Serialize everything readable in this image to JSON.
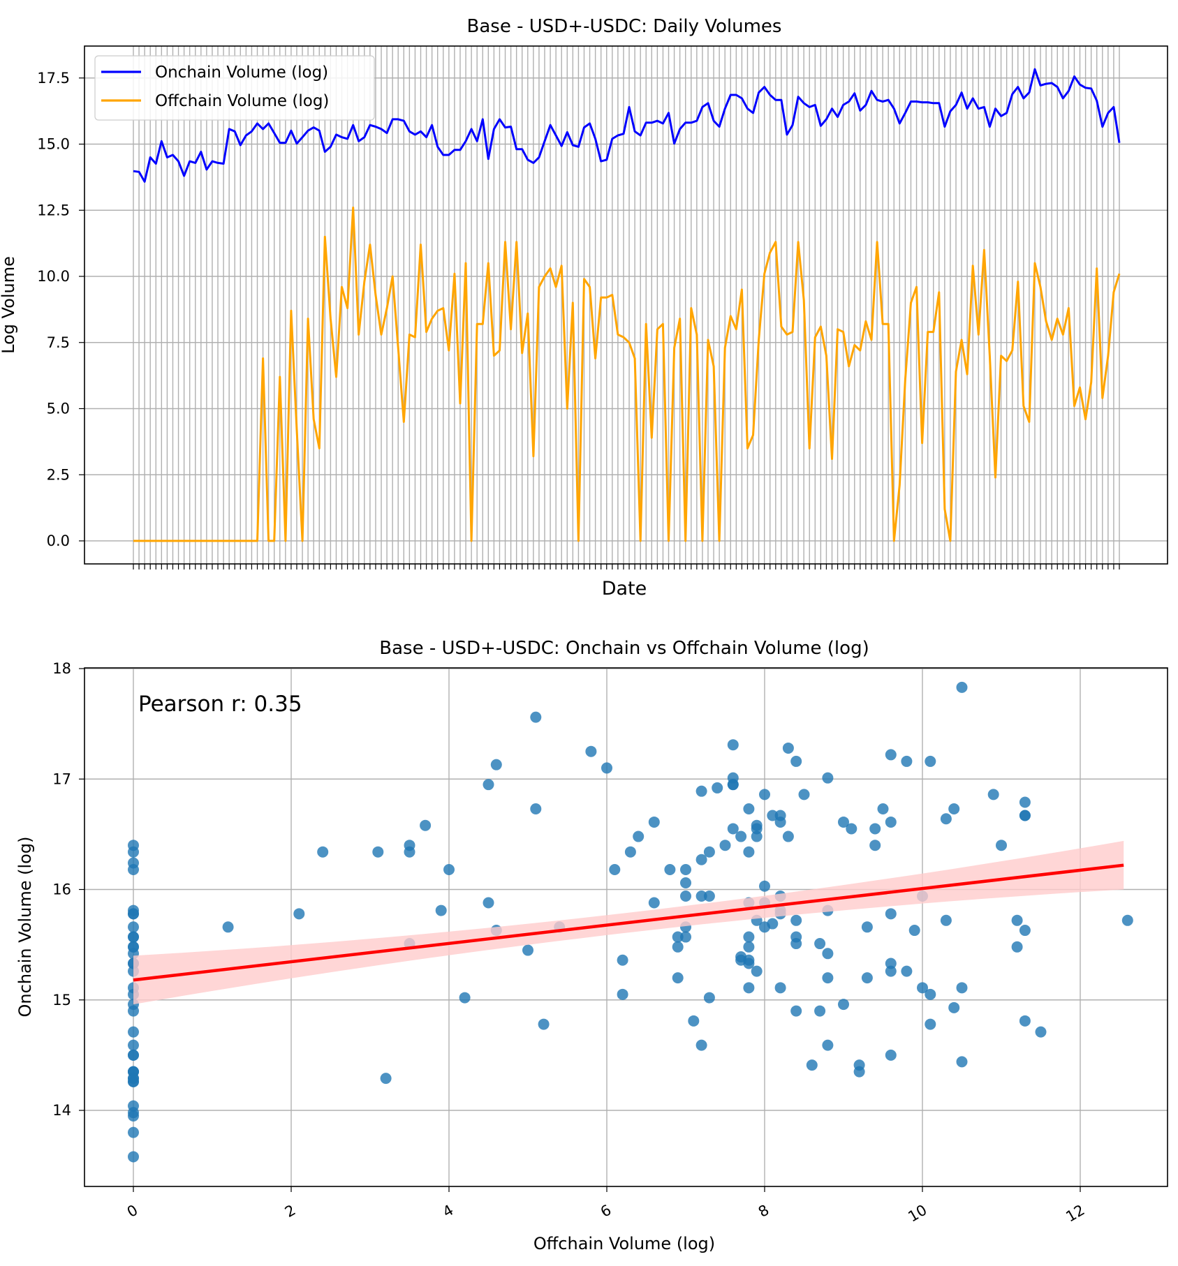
{
  "chart_data": [
    {
      "type": "line",
      "title": "Base - USD+-USDC: Daily Volumes",
      "xlabel": "Date",
      "ylabel": "Log Volume",
      "ylim": [
        -0.87,
        18.7
      ],
      "yticks": [
        "0.0",
        "2.5",
        "5.0",
        "7.5",
        "10.0",
        "12.5",
        "15.0",
        "17.5"
      ],
      "grid": true,
      "legend_position": "top-left",
      "series": [
        {
          "name": "Onchain Volume (log)",
          "color": "#0000ff",
          "values": [
            13.98,
            13.95,
            13.58,
            14.5,
            14.26,
            15.11,
            14.5,
            14.59,
            14.35,
            13.8,
            14.35,
            14.29,
            14.71,
            14.04,
            14.35,
            14.29,
            14.26,
            15.57,
            15.48,
            14.96,
            15.33,
            15.48,
            15.78,
            15.57,
            15.78,
            15.42,
            15.05,
            15.05,
            15.51,
            15.02,
            15.26,
            15.51,
            15.63,
            15.51,
            14.71,
            14.9,
            15.36,
            15.26,
            15.2,
            15.72,
            15.11,
            15.26,
            15.72,
            15.66,
            15.57,
            15.42,
            15.94,
            15.94,
            15.88,
            15.48,
            15.36,
            15.48,
            15.26,
            15.72,
            14.9,
            14.59,
            14.59,
            14.78,
            14.78,
            15.11,
            15.57,
            15.11,
            15.94,
            14.44,
            15.57,
            15.94,
            15.63,
            15.66,
            14.81,
            14.81,
            14.41,
            14.29,
            14.5,
            15.11,
            15.72,
            15.33,
            14.93,
            15.45,
            14.96,
            14.9,
            15.63,
            15.78,
            15.2,
            14.35,
            14.41,
            15.2,
            15.33,
            15.39,
            16.4,
            15.48,
            15.33,
            15.81,
            15.81,
            15.88,
            15.78,
            16.18,
            15.02,
            15.57,
            15.81,
            15.81,
            15.88,
            16.4,
            16.55,
            15.88,
            15.66,
            16.34,
            16.86,
            16.86,
            16.73,
            16.34,
            16.18,
            16.95,
            17.16,
            16.86,
            16.67,
            16.67,
            15.36,
            15.72,
            16.79,
            16.55,
            16.4,
            16.48,
            15.69,
            15.94,
            16.34,
            16.03,
            16.48,
            16.61,
            16.92,
            16.27,
            16.48,
            17.01,
            16.67,
            16.61,
            16.67,
            16.34,
            15.78,
            16.18,
            16.61,
            16.61,
            16.58,
            16.58,
            16.55,
            16.55,
            15.66,
            16.24,
            16.48,
            16.95,
            16.34,
            16.73,
            16.34,
            16.4,
            15.66,
            16.34,
            16.06,
            16.18,
            16.89,
            17.16,
            16.73,
            16.95,
            17.83,
            17.22,
            17.28,
            17.31,
            17.16,
            16.73,
            17.01,
            17.56,
            17.25,
            17.13,
            17.1,
            16.64,
            15.66,
            16.18,
            16.4,
            15.05
          ]
        },
        {
          "name": "Offchain Volume (log)",
          "color": "#ffa500",
          "values": [
            0,
            0,
            0,
            0,
            0,
            0,
            0,
            0,
            0,
            0,
            0,
            0,
            0,
            0,
            0,
            0,
            0,
            0,
            0,
            0,
            0,
            0,
            0,
            6.9,
            0,
            0,
            6.2,
            0,
            8.7,
            4.2,
            0,
            8.4,
            4.6,
            3.5,
            11.5,
            8.4,
            6.2,
            9.6,
            8.8,
            12.6,
            7.8,
            9.8,
            11.2,
            9.3,
            7.8,
            8.8,
            10.0,
            7.3,
            4.5,
            7.8,
            7.7,
            11.2,
            7.9,
            8.4,
            8.7,
            8.8,
            7.2,
            10.1,
            5.2,
            10.5,
            0,
            8.2,
            8.2,
            10.5,
            7.0,
            7.2,
            11.3,
            8.0,
            11.3,
            7.1,
            8.6,
            3.2,
            9.6,
            10.0,
            10.3,
            9.6,
            10.4,
            5.0,
            9.0,
            0,
            9.9,
            9.6,
            6.9,
            9.2,
            9.2,
            9.3,
            7.8,
            7.7,
            7.5,
            6.9,
            0,
            8.2,
            3.9,
            8.0,
            8.2,
            0,
            7.3,
            8.4,
            0,
            8.8,
            7.8,
            0,
            7.6,
            6.6,
            0,
            7.3,
            8.5,
            8.0,
            9.5,
            3.5,
            4.0,
            7.6,
            10.1,
            10.9,
            11.3,
            8.1,
            7.8,
            7.9,
            11.3,
            9.1,
            3.5,
            7.7,
            8.1,
            7.0,
            3.1,
            8.0,
            7.9,
            6.6,
            7.4,
            7.2,
            8.3,
            7.6,
            11.3,
            8.2,
            8.2,
            0,
            2.1,
            6.1,
            9.0,
            9.6,
            3.7,
            7.9,
            7.9,
            9.4,
            1.2,
            0,
            6.4,
            7.6,
            6.3,
            10.4,
            7.8,
            11.0,
            7.0,
            2.4,
            7.0,
            6.8,
            7.2,
            9.8,
            5.1,
            4.5,
            10.5,
            9.6,
            8.3,
            7.6,
            8.4,
            7.8,
            8.8,
            5.1,
            5.8,
            4.6,
            6.0,
            10.3,
            5.4,
            7.0,
            9.4,
            10.1
          ]
        }
      ]
    },
    {
      "type": "scatter",
      "title": "Base - USD+-USDC: Onchain vs Offchain Volume (log)",
      "xlabel": "Offchain Volume (log)",
      "ylabel": "Onchain Volume (log)",
      "xlim": [
        -0.62,
        13.1
      ],
      "ylim": [
        13.31,
        18.0
      ],
      "xticks": [
        "0",
        "2",
        "4",
        "6",
        "8",
        "10",
        "12"
      ],
      "yticks": [
        "14",
        "15",
        "16",
        "17",
        "18"
      ],
      "grid": true,
      "point_color": "#1f77b4",
      "points_source": "x = Offchain Volume (log), y = Onchain Volume (log) per day",
      "annotation": "Pearson r: 0.35",
      "regression": {
        "color": "#ff0000",
        "x": [
          0,
          12.55
        ],
        "y": [
          15.18,
          16.22
        ],
        "ci_halfwidth_center": 0.09,
        "ci_halfwidth_ends": 0.22,
        "ci_color": "#ffcccc"
      }
    }
  ]
}
